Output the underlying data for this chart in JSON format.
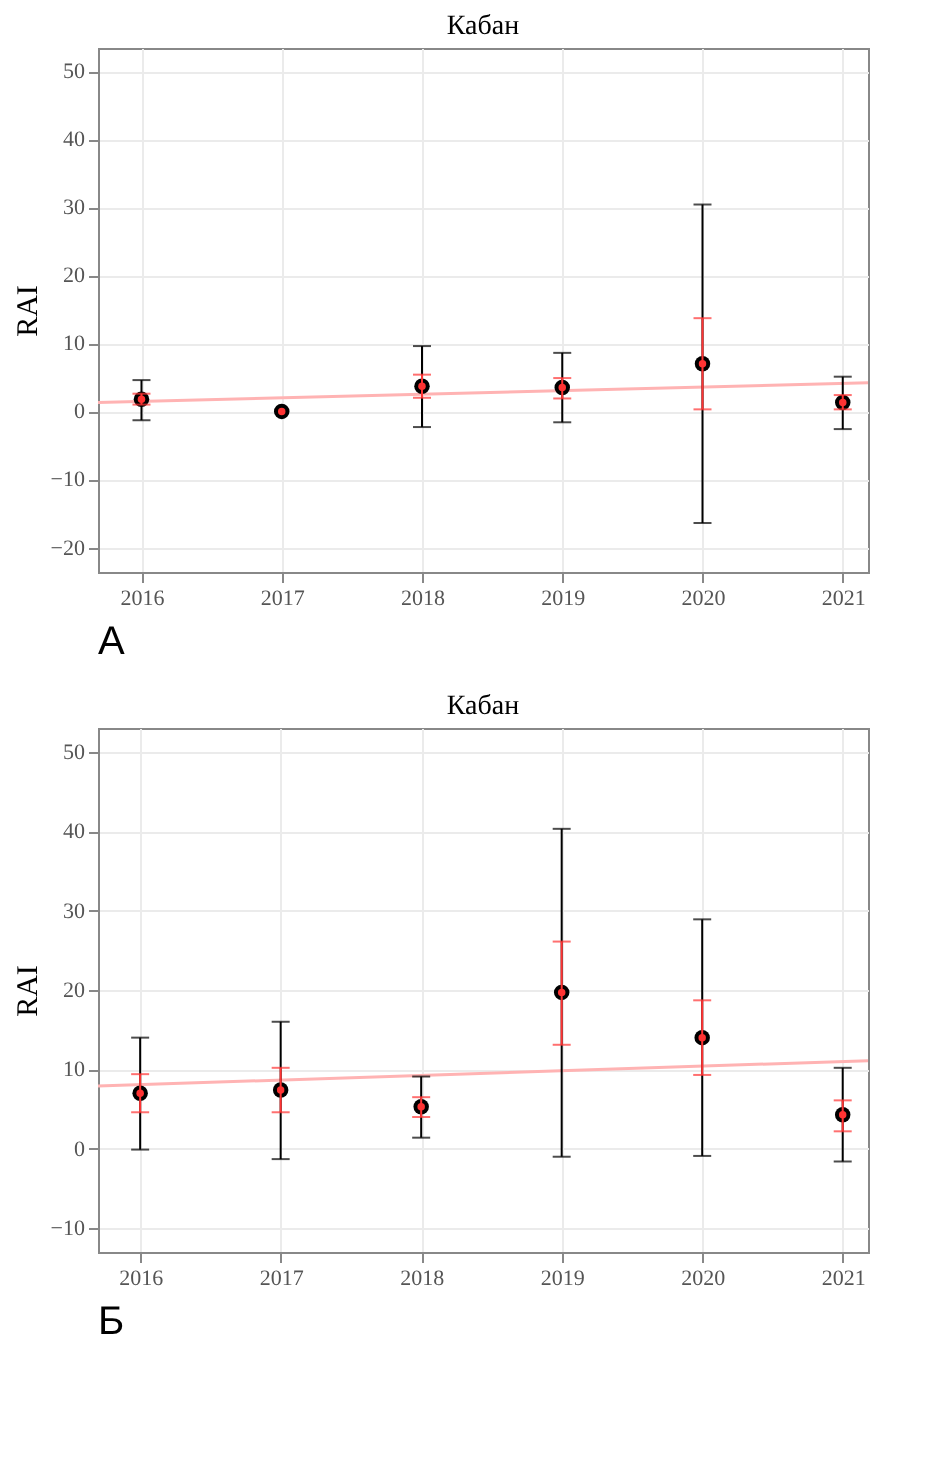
{
  "chart_data": [
    {
      "type": "scatter",
      "title": "Кабан",
      "ylabel": "RAI",
      "annotations": [
        "А"
      ],
      "xlim": [
        2015.69,
        2021.18
      ],
      "xticks": [
        2016,
        2017,
        2018,
        2019,
        2020,
        2021
      ],
      "ylim": [
        -23.6,
        53.4
      ],
      "yticks": [
        -20,
        -10,
        0,
        10,
        20,
        30,
        40,
        50
      ],
      "grid": true,
      "series": [
        {
          "color": "#000000",
          "marker": "circle",
          "x": [
            2016,
            2017,
            2018,
            2019,
            2020,
            2021
          ],
          "values": [
            1.8,
            0,
            3.7,
            3.5,
            7.0,
            1.3
          ],
          "errors": [
            [
              -1.3,
              4.6
            ],
            null,
            [
              -2.3,
              9.6
            ],
            [
              -1.6,
              8.6
            ],
            [
              -16.4,
              30.4
            ],
            [
              -2.6,
              5.1
            ]
          ]
        },
        {
          "color": "#ff3333",
          "marker": "circle",
          "x": [
            2016,
            2017,
            2018,
            2019,
            2020,
            2021
          ],
          "values": [
            1.8,
            0,
            3.7,
            3.5,
            7.0,
            1.3
          ],
          "errors": [
            [
              1.0,
              2.6
            ],
            null,
            [
              2.0,
              5.4
            ],
            [
              1.9,
              4.9
            ],
            [
              0.3,
              13.7
            ],
            [
              0.3,
              2.4
            ]
          ]
        },
        {
          "type": "line",
          "color": "#ffb3b3",
          "marker": "none",
          "line_style": "solid",
          "x": [
            2015.69,
            2021.18
          ],
          "values": [
            1.3,
            4.2
          ]
        }
      ]
    },
    {
      "type": "scatter",
      "title": "Кабан",
      "ylabel": "RAI",
      "annotations": [
        "Б"
      ],
      "xlim": [
        2015.7,
        2021.18
      ],
      "xticks": [
        2016,
        2017,
        2018,
        2019,
        2020,
        2021
      ],
      "ylim": [
        -13.0,
        53.0
      ],
      "yticks": [
        -10,
        0,
        10,
        20,
        30,
        40,
        50
      ],
      "grid": true,
      "series": [
        {
          "color": "#000000",
          "marker": "circle",
          "x": [
            2016,
            2017,
            2018,
            2019,
            2020,
            2021
          ],
          "values": [
            7.0,
            7.4,
            5.3,
            19.7,
            14.0,
            4.3
          ],
          "errors": [
            [
              -0.1,
              14.0
            ],
            [
              -1.3,
              16.0
            ],
            [
              1.4,
              9.1
            ],
            [
              -1.0,
              40.3
            ],
            [
              -0.9,
              28.9
            ],
            [
              -1.6,
              10.2
            ]
          ]
        },
        {
          "color": "#ff3333",
          "marker": "circle",
          "x": [
            2016,
            2017,
            2018,
            2019,
            2020,
            2021
          ],
          "values": [
            7.0,
            7.4,
            5.3,
            19.7,
            14.0,
            4.3
          ],
          "errors": [
            [
              4.6,
              9.4
            ],
            [
              4.6,
              10.2
            ],
            [
              4.0,
              6.5
            ],
            [
              13.1,
              26.1
            ],
            [
              9.3,
              18.7
            ],
            [
              2.2,
              6.1
            ]
          ]
        },
        {
          "type": "line",
          "color": "#ffb3b3",
          "marker": "none",
          "line_style": "solid",
          "x": [
            2015.7,
            2021.18
          ],
          "values": [
            7.9,
            11.1
          ]
        }
      ]
    }
  ]
}
